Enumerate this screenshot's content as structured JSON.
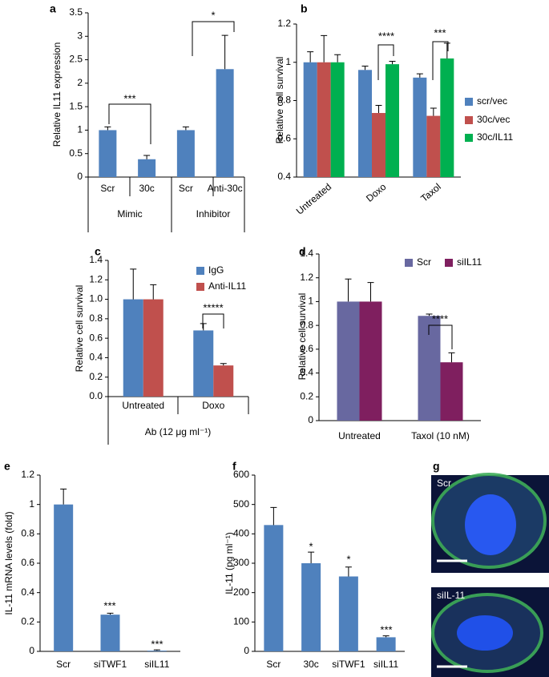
{
  "chart_data": [
    {
      "type": "bar",
      "panel": "a",
      "ylabel": "Relative IL11 expression",
      "categories": [
        "Scr",
        "30c",
        "Scr",
        "Anti-30c"
      ],
      "values": [
        1.0,
        0.38,
        1.0,
        2.3
      ],
      "errors": [
        0.07,
        0.08,
        0.07,
        0.72
      ],
      "color": "#4f81bd",
      "ylim": [
        0,
        3.5
      ],
      "yticks": [
        0,
        0.5,
        1,
        1.5,
        2,
        2.5,
        3,
        3.5
      ],
      "groups": [
        "Mimic",
        "Inhibitor"
      ],
      "annotations": [
        "***",
        "*"
      ]
    },
    {
      "type": "bar",
      "panel": "b",
      "ylabel": "Relative cell survival",
      "categories": [
        "Untreated",
        "Doxo",
        "Taxol"
      ],
      "series": [
        {
          "name": "scr/vec",
          "color": "#4f81bd",
          "values": [
            1.0,
            0.96,
            0.92
          ],
          "errors": [
            0.055,
            0.02,
            0.02
          ]
        },
        {
          "name": "30c/vec",
          "color": "#c0504d",
          "values": [
            1.0,
            0.735,
            0.72
          ],
          "errors": [
            0.14,
            0.04,
            0.04
          ]
        },
        {
          "name": "30c/IL11",
          "color": "#00b050",
          "values": [
            1.0,
            0.99,
            1.02
          ],
          "errors": [
            0.04,
            0.015,
            0.08
          ]
        }
      ],
      "ylim": [
        0.4,
        1.2
      ],
      "yticks": [
        0.4,
        0.6,
        0.8,
        1,
        1.2
      ],
      "legend": "right",
      "annotations": [
        "****",
        "***"
      ]
    },
    {
      "type": "bar",
      "panel": "c",
      "ylabel": "Relative cell survival",
      "xlabel": "Ab (12 μg ml⁻¹)",
      "categories": [
        "Untreated",
        "Doxo"
      ],
      "series": [
        {
          "name": "IgG",
          "color": "#4f81bd",
          "values": [
            1.0,
            0.68
          ],
          "errors": [
            0.31,
            0.07
          ]
        },
        {
          "name": "Anti-IL11",
          "color": "#c0504d",
          "values": [
            1.0,
            0.32
          ],
          "errors": [
            0.15,
            0.02
          ]
        }
      ],
      "ylim": [
        0,
        1.4
      ],
      "yticks": [
        {
          "value": 0,
          "label": "0.0"
        },
        0.2,
        0.4,
        0.6,
        0.8,
        {
          "value": 1,
          "label": "1.0"
        },
        1.2,
        1.4
      ],
      "legend": "upper right",
      "annotations": [
        "*****"
      ]
    },
    {
      "type": "bar",
      "panel": "d",
      "ylabel": "Relative cell survival",
      "categories": [
        "Untreated",
        "Taxol (10 nM)"
      ],
      "series": [
        {
          "name": "Scr",
          "color": "#6868a0",
          "values": [
            1.0,
            0.88
          ],
          "errors": [
            0.19,
            0.015
          ]
        },
        {
          "name": "siIL11",
          "color": "#7f1f5f",
          "values": [
            1.0,
            0.49
          ],
          "errors": [
            0.16,
            0.08
          ]
        }
      ],
      "ylim": [
        0,
        1.4
      ],
      "yticks": [
        0,
        0.2,
        0.4,
        0.6,
        0.8,
        1,
        1.2,
        1.4
      ],
      "legend": "top",
      "annotations": [
        "****"
      ]
    },
    {
      "type": "bar",
      "panel": "e",
      "ylabel": "IL-11 mRNA levels (fold)",
      "categories": [
        "Scr",
        "siTWF1",
        "siIL11"
      ],
      "values": [
        1.0,
        0.25,
        0.005
      ],
      "errors": [
        0.105,
        0.01,
        0.005
      ],
      "color": "#4f81bd",
      "ylim": [
        0,
        1.2
      ],
      "yticks": [
        0,
        0.2,
        0.4,
        0.6,
        0.8,
        1,
        1.2
      ],
      "annotations": [
        "***",
        "***"
      ]
    },
    {
      "type": "bar",
      "panel": "f",
      "ylabel": "IL-11 (pg ml⁻¹)",
      "categories": [
        "Scr",
        "30c",
        "siTWF1",
        "siIL11"
      ],
      "values": [
        430,
        300,
        255,
        48
      ],
      "errors": [
        60,
        38,
        32,
        5
      ],
      "color": "#4f81bd",
      "ylim": [
        0,
        600
      ],
      "yticks": [
        0,
        100,
        200,
        300,
        400,
        500,
        600
      ],
      "annotations": [
        "*",
        "*",
        "***"
      ]
    }
  ],
  "image_panel": {
    "panel": "g",
    "labels": [
      "Scr",
      "siIL-11"
    ]
  }
}
